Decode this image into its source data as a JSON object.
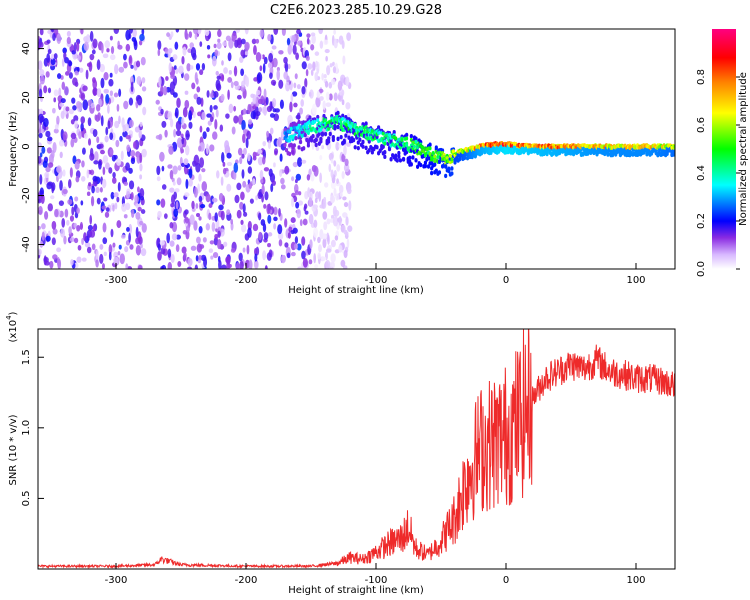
{
  "title": "C2E6.2023.285.10.29.G28",
  "chart_data": [
    {
      "type": "heatmap",
      "xlabel": "Height of straight line (km)",
      "ylabel": "Frequency (Hz)",
      "xlim": [
        -360,
        130
      ],
      "ylim": [
        -50,
        48
      ],
      "x_ticks": [
        -300,
        -200,
        -100,
        0,
        100
      ],
      "x_tick_labels": [
        "-300",
        "-200",
        "-100",
        "0",
        "100"
      ],
      "y_ticks": [
        40,
        20,
        0,
        -20,
        -40
      ],
      "y_tick_labels": [
        "40",
        "20",
        "0",
        "-20",
        "-40"
      ],
      "colorbar": {
        "label": "Normalized spectral amplitude",
        "range": [
          0,
          1
        ],
        "ticks": [
          0.0,
          0.2,
          0.4,
          0.6,
          0.8
        ],
        "tick_labels": [
          "0.0",
          "0.2",
          "0.4",
          "0.6",
          "0.8"
        ],
        "colormap": [
          "#ffffff",
          "#8a2be2",
          "#0000ff",
          "#00ffff",
          "#00ff00",
          "#ffff00",
          "#ff8000",
          "#ff0000",
          "#ff0080"
        ]
      },
      "ridge": {
        "x": [
          -280,
          -250,
          -200,
          -170,
          -150,
          -130,
          -110,
          -90,
          -70,
          -55,
          -45,
          -35,
          -20,
          -10,
          0,
          20,
          50,
          80,
          110,
          130
        ],
        "frequency": [
          4,
          3,
          2,
          4,
          8,
          10,
          6,
          3,
          0,
          -4,
          -5,
          -2,
          0,
          1,
          1,
          0,
          0,
          0,
          0,
          0
        ],
        "amplitude": [
          0.45,
          0.3,
          0.3,
          0.35,
          0.45,
          0.5,
          0.5,
          0.5,
          0.55,
          0.6,
          0.65,
          0.7,
          0.85,
          0.9,
          0.95,
          0.9,
          0.85,
          0.8,
          0.8,
          0.75
        ]
      },
      "noise_region_x": [
        -360,
        -150
      ],
      "grid": false
    },
    {
      "type": "line",
      "xlabel": "Height of straight line (km)",
      "ylabel": "SNR (10 * v/v)",
      "scale_label": "(x10",
      "scale_exp": "4",
      "scale_close": ")",
      "xlim": [
        -360,
        130
      ],
      "ylim": [
        0,
        1.7
      ],
      "x_ticks": [
        -300,
        -200,
        -100,
        0,
        100
      ],
      "x_tick_labels": [
        "-300",
        "-200",
        "-100",
        "0",
        "100"
      ],
      "y_ticks": [
        0.5,
        1.0,
        1.5
      ],
      "y_tick_labels": [
        "0.5",
        "1.0",
        "1.5"
      ],
      "color": "#ee2a2a",
      "series": [
        {
          "x": [
            -360,
            -300,
            -270,
            -265,
            -250,
            -200,
            -150,
            -130,
            -120,
            -110,
            -100,
            -90,
            -80,
            -75,
            -70,
            -60,
            -50,
            -40,
            -30,
            -20,
            -10,
            0,
            10,
            20,
            30,
            40,
            50,
            60,
            70,
            80,
            90,
            100,
            110,
            120,
            130
          ],
          "values": [
            0.02,
            0.02,
            0.03,
            0.07,
            0.03,
            0.02,
            0.02,
            0.04,
            0.08,
            0.07,
            0.12,
            0.18,
            0.22,
            0.3,
            0.15,
            0.1,
            0.2,
            0.35,
            0.65,
            0.85,
            0.9,
            0.95,
            1.05,
            1.2,
            1.35,
            1.4,
            1.45,
            1.42,
            1.48,
            1.4,
            1.38,
            1.35,
            1.35,
            1.33,
            1.3
          ]
        }
      ],
      "grid": false
    }
  ]
}
